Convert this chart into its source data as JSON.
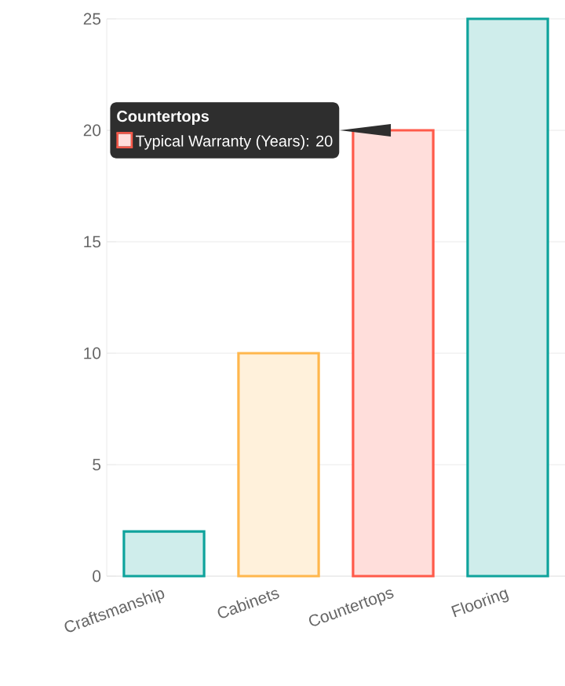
{
  "chart_data": {
    "type": "bar",
    "categories": [
      "Craftsmanship",
      "Cabinets",
      "Countertops",
      "Flooring"
    ],
    "values": [
      2,
      10,
      20,
      25
    ],
    "colors": [
      "#0fa39c",
      "#ffb74d",
      "#ff5a4a",
      "#0fa39c"
    ],
    "ylim": [
      0,
      25
    ],
    "yticks": [
      0,
      5,
      10,
      15,
      20,
      25
    ],
    "grid": "y",
    "annotations": [
      "Countertops",
      "Typical Warranty (Years): 20"
    ]
  }
}
